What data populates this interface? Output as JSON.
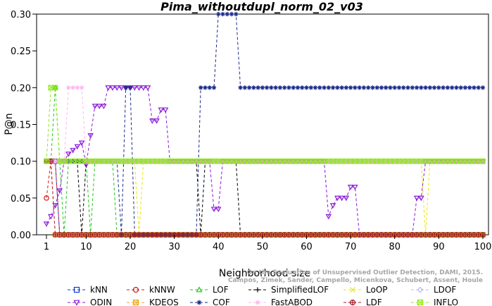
{
  "chart_data": {
    "type": "line",
    "title": "Pima_withoutdupl_norm_02_v03",
    "xlabel": "Neighborhood size",
    "ylabel": "P@n",
    "xlim": [
      1,
      100
    ],
    "ylim": [
      0,
      0.3
    ],
    "x_ticks": [
      1,
      10,
      20,
      30,
      40,
      50,
      60,
      70,
      80,
      90,
      100
    ],
    "y_ticks": [
      "0.00",
      "0.05",
      "0.10",
      "0.15",
      "0.20",
      "0.25",
      "0.30"
    ],
    "grid": false,
    "legend_position": "bottom",
    "credit": [
      "Campos, Zimek, Sander, Campello, Micenkova, Schubert, Assent, Houle",
      "On the Evaluation of Unsupervised Outlier Detection, DAMI, 2015."
    ],
    "series": [
      {
        "name": "kNN",
        "color": "#0a3bd8",
        "marker": "square",
        "points": [
          [
            1,
            0.1
          ],
          [
            3,
            0.1
          ],
          [
            4,
            0.0
          ],
          [
            100,
            0.0
          ]
        ]
      },
      {
        "name": "kNNW",
        "color": "#d41a1a",
        "marker": "circle",
        "points": [
          [
            1,
            0.05
          ],
          [
            2,
            0.1
          ],
          [
            3,
            0.1
          ],
          [
            4,
            0.0
          ],
          [
            100,
            0.0
          ]
        ]
      },
      {
        "name": "LOF",
        "color": "#1ec81e",
        "marker": "triangle-up",
        "points": [
          [
            1,
            0.1
          ],
          [
            2,
            0.1
          ],
          [
            3,
            0.2
          ],
          [
            4,
            0.1
          ],
          [
            5,
            0.0
          ],
          [
            6,
            0.1
          ],
          [
            10,
            0.1
          ],
          [
            11,
            0.0
          ],
          [
            12,
            0.1
          ],
          [
            16,
            0.1
          ],
          [
            17,
            0.0
          ],
          [
            100,
            0.0
          ]
        ]
      },
      {
        "name": "SimplifiedLOF",
        "color": "#000000",
        "marker": "plus",
        "points": [
          [
            1,
            0.1
          ],
          [
            8,
            0.1
          ],
          [
            9,
            0.0
          ],
          [
            10,
            0.1
          ],
          [
            35,
            0.1
          ],
          [
            36,
            0.0
          ],
          [
            37,
            0.1
          ],
          [
            44,
            0.1
          ],
          [
            45,
            0.0
          ],
          [
            100,
            0.0
          ]
        ]
      },
      {
        "name": "LoOP",
        "color": "#e8e80a",
        "marker": "cross",
        "points": [
          [
            1,
            0.1
          ],
          [
            21,
            0.1
          ],
          [
            22,
            0.0
          ],
          [
            23,
            0.1
          ],
          [
            86,
            0.1
          ],
          [
            87,
            0.0
          ],
          [
            88,
            0.1
          ],
          [
            100,
            0.1
          ]
        ]
      },
      {
        "name": "LDOF",
        "color": "#b8b8f8",
        "marker": "diamond",
        "points": [
          [
            1,
            0.1
          ],
          [
            100,
            0.1
          ]
        ]
      },
      {
        "name": "ODIN",
        "color": "#8a18d8",
        "marker": "triangle-down",
        "points": [
          [
            1,
            0.015
          ],
          [
            2,
            0.025
          ],
          [
            3,
            0.04
          ],
          [
            4,
            0.06
          ],
          [
            5,
            0.1
          ],
          [
            6,
            0.11
          ],
          [
            7,
            0.115
          ],
          [
            8,
            0.12
          ],
          [
            9,
            0.125
          ],
          [
            10,
            0.095
          ],
          [
            11,
            0.135
          ],
          [
            12,
            0.175
          ],
          [
            13,
            0.175
          ],
          [
            14,
            0.175
          ],
          [
            15,
            0.2
          ],
          [
            24,
            0.2
          ],
          [
            25,
            0.155
          ],
          [
            26,
            0.155
          ],
          [
            27,
            0.17
          ],
          [
            28,
            0.17
          ],
          [
            29,
            0.1
          ],
          [
            38,
            0.1
          ],
          [
            39,
            0.035
          ],
          [
            40,
            0.035
          ],
          [
            41,
            0.1
          ],
          [
            64,
            0.1
          ],
          [
            65,
            0.025
          ],
          [
            66,
            0.04
          ],
          [
            67,
            0.05
          ],
          [
            68,
            0.05
          ],
          [
            69,
            0.05
          ],
          [
            70,
            0.065
          ],
          [
            71,
            0.065
          ],
          [
            72,
            0.0
          ],
          [
            84,
            0.0
          ],
          [
            85,
            0.05
          ],
          [
            86,
            0.05
          ],
          [
            87,
            0.1
          ],
          [
            100,
            0.1
          ]
        ]
      },
      {
        "name": "KDEOS",
        "color": "#f0a818",
        "marker": "square-x",
        "points": [
          [
            1,
            0.1
          ],
          [
            2,
            0.1
          ],
          [
            3,
            0.0
          ],
          [
            100,
            0.0
          ]
        ]
      },
      {
        "name": "COF",
        "color": "#1a2a8a",
        "marker": "star",
        "points": [
          [
            1,
            0.1
          ],
          [
            17,
            0.1
          ],
          [
            18,
            0.0
          ],
          [
            19,
            0.2
          ],
          [
            20,
            0.2
          ],
          [
            21,
            0.0
          ],
          [
            35,
            0.0
          ],
          [
            36,
            0.2
          ],
          [
            37,
            0.2
          ],
          [
            38,
            0.2
          ],
          [
            39,
            0.2
          ],
          [
            40,
            0.3
          ],
          [
            44,
            0.3
          ],
          [
            45,
            0.2
          ],
          [
            100,
            0.2
          ]
        ]
      },
      {
        "name": "FastABOD",
        "color": "#ffb8f0",
        "marker": "star-8",
        "points": [
          [
            1,
            0.1
          ],
          [
            5,
            0.1
          ],
          [
            6,
            0.2
          ],
          [
            9,
            0.2
          ],
          [
            10,
            0.1
          ],
          [
            100,
            0.1
          ]
        ]
      },
      {
        "name": "LDF",
        "color": "#a81a2a",
        "marker": "circle-plus",
        "points": [
          [
            1,
            0.1
          ],
          [
            2,
            0.1
          ],
          [
            3,
            0.0
          ],
          [
            100,
            0.0
          ]
        ]
      },
      {
        "name": "INFLO",
        "color": "#8ee818",
        "marker": "square-x",
        "points": [
          [
            1,
            0.1
          ],
          [
            2,
            0.2
          ],
          [
            3,
            0.2
          ],
          [
            4,
            0.1
          ],
          [
            100,
            0.1
          ]
        ]
      }
    ]
  }
}
